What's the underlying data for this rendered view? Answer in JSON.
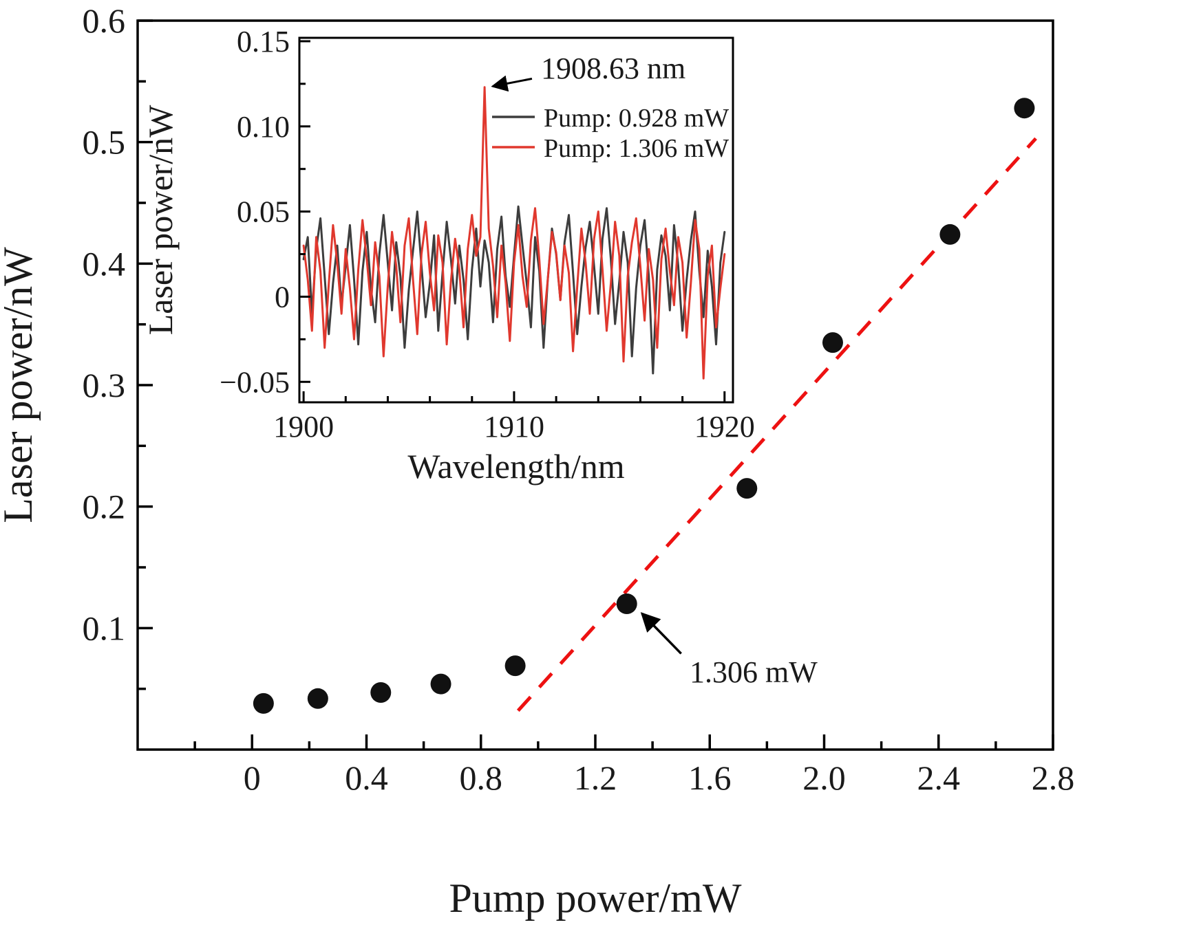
{
  "chart_data": [
    {
      "type": "scatter",
      "xlabel": "Pump power/mW",
      "ylabel": "Laser power/nW",
      "xlim": [
        -0.4,
        2.8
      ],
      "ylim": [
        0,
        0.6
      ],
      "xticks": [
        0,
        0.4,
        0.8,
        1.2,
        1.6,
        2.0,
        2.4,
        2.8
      ],
      "xtick_labels": [
        "0",
        "0.4",
        "0.8",
        "1.2",
        "1.6",
        "2.0",
        "2.4",
        "2.8"
      ],
      "xminor": [
        -0.2,
        0.2,
        0.6,
        1.0,
        1.4,
        1.8,
        2.2,
        2.6
      ],
      "yticks": [
        0.1,
        0.2,
        0.3,
        0.4,
        0.5,
        0.6
      ],
      "ytick_labels": [
        "0.1",
        "0.2",
        "0.3",
        "0.4",
        "0.5",
        "0.6"
      ],
      "yminor": [
        0.05,
        0.15,
        0.25,
        0.35,
        0.45,
        0.55
      ],
      "point_color": "#111111",
      "series": [
        {
          "name": "laser-output-points",
          "type": "scatter",
          "x": [
            0.04,
            0.23,
            0.45,
            0.66,
            0.92,
            1.31,
            1.73,
            2.03,
            2.44,
            2.7
          ],
          "y": [
            0.038,
            0.042,
            0.047,
            0.054,
            0.069,
            0.12,
            0.215,
            0.335,
            0.424,
            0.528
          ]
        },
        {
          "name": "linear-fit",
          "type": "line",
          "dash": true,
          "color": "#ed1111",
          "x": [
            0.93,
            2.74
          ],
          "y": [
            0.032,
            0.503
          ]
        }
      ],
      "annotation": {
        "text": "1.306 mW",
        "arrow_from": [
          1.5,
          0.079
        ],
        "arrow_to": [
          1.363,
          0.112
        ]
      }
    },
    {
      "type": "line",
      "xlabel": "Wavelength/nm",
      "ylabel": "Laser power/nW",
      "xlim": [
        1899.8,
        1920.4
      ],
      "ylim": [
        -0.062,
        0.152
      ],
      "xticks": [
        1900,
        1910,
        1920
      ],
      "xtick_labels": [
        "1900",
        "1910",
        "1920"
      ],
      "xminor": [
        1902,
        1904,
        1906,
        1908,
        1912,
        1914,
        1916,
        1918
      ],
      "yticks": [
        -0.05,
        0,
        0.05,
        0.1,
        0.15
      ],
      "ytick_labels": [
        "−0.05",
        "0",
        "0.05",
        "0.10",
        "0.15"
      ],
      "yminor": [
        -0.025,
        0.025,
        0.075,
        0.125
      ],
      "x_start": 1900,
      "x_step": 0.2,
      "series": [
        {
          "name": "Pump: 0.928 mW",
          "color": "#3d3d3d",
          "values": [
            0.022,
            0.035,
            -0.01,
            0.028,
            0.046,
            0.012,
            -0.022,
            0.008,
            0.03,
            -0.005,
            0.018,
            0.042,
            0.01,
            -0.028,
            0.015,
            0.038,
            0.005,
            -0.015,
            0.025,
            0.048,
            0.02,
            -0.008,
            0.032,
            0.012,
            -0.03,
            0.004,
            0.027,
            0.05,
            0.018,
            -0.012,
            0.008,
            0.036,
            -0.02,
            0.014,
            0.044,
            0.022,
            -0.004,
            0.03,
            0.01,
            -0.025,
            0.016,
            0.04,
            0.006,
            0.033,
            0.02,
            -0.015,
            0.028,
            0.047,
            0.012,
            -0.006,
            0.024,
            0.053,
            0.03,
            0.008,
            -0.018,
            0.035,
            0.015,
            -0.03,
            0.01,
            0.04,
            0.025,
            -0.002,
            0.032,
            0.048,
            0.014,
            -0.022,
            0.006,
            0.029,
            0.044,
            0.018,
            -0.01,
            0.034,
            0.052,
            0.022,
            -0.016,
            0.009,
            0.038,
            0.02,
            -0.035,
            0.005,
            0.03,
            0.045,
            0.012,
            -0.045,
            0.016,
            0.036,
            0.024,
            -0.008,
            0.042,
            0.018,
            -0.02,
            0.01,
            0.033,
            0.05,
            0.015,
            -0.012,
            0.027,
            0.006,
            -0.028,
            0.02,
            0.038
          ]
        },
        {
          "name": "Pump: 1.306 mW",
          "color": "#e0382e",
          "values": [
            0.03,
            0.01,
            -0.02,
            0.035,
            0.015,
            -0.03,
            0.008,
            0.042,
            0.02,
            -0.01,
            0.028,
            0.005,
            -0.025,
            0.016,
            0.045,
            0.022,
            -0.005,
            0.032,
            0.012,
            -0.035,
            0.006,
            0.038,
            0.018,
            -0.015,
            0.03,
            0.046,
            0.01,
            -0.022,
            0.025,
            0.044,
            0.014,
            -0.008,
            0.036,
            0.02,
            -0.028,
            0.009,
            0.034,
            0.016,
            -0.018,
            0.028,
            0.048,
            0.024,
            0.035,
            0.123,
            0.04,
            0.018,
            -0.012,
            0.03,
            0.008,
            -0.026,
            0.02,
            0.042,
            0.012,
            -0.006,
            0.033,
            0.052,
            0.022,
            -0.016,
            0.01,
            0.038,
            0.026,
            -0.002,
            0.03,
            0.014,
            -0.032,
            0.006,
            0.04,
            0.02,
            -0.01,
            0.034,
            0.05,
            0.016,
            -0.02,
            0.008,
            0.044,
            0.024,
            -0.038,
            0.012,
            0.032,
            0.046,
            0.018,
            -0.014,
            0.028,
            0.01,
            -0.03,
            0.022,
            0.04,
            0.015,
            -0.005,
            0.035,
            0.02,
            -0.024,
            0.008,
            0.045,
            0.028,
            -0.048,
            0.012,
            0.03,
            -0.018,
            0.005,
            0.025
          ]
        }
      ],
      "peak_annotation": {
        "text": "1908.63 nm",
        "peak_x": 1908.63,
        "peak_y": 0.123,
        "arrow_from": [
          1910.85,
          0.128
        ],
        "arrow_to": [
          1908.98,
          0.1235
        ]
      }
    }
  ]
}
